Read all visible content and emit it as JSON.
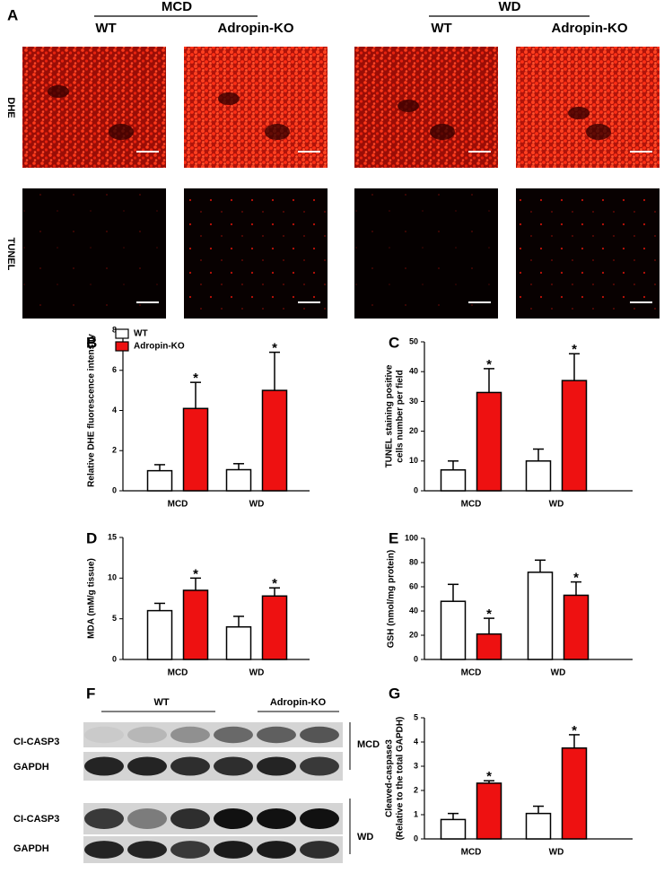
{
  "panel_a": {
    "label": "A",
    "groups": [
      {
        "name": "MCD",
        "columns": [
          "WT",
          "Adropin-KO"
        ]
      },
      {
        "name": "WD",
        "columns": [
          "WT",
          "Adropin-KO"
        ]
      }
    ],
    "rows": [
      "DHE",
      "TUNEL"
    ]
  },
  "panel_f": {
    "label": "F",
    "groups": [
      "WT",
      "Adropin-KO"
    ],
    "rows": [
      "CI-CASP3",
      "GAPDH",
      "CI-CASP3",
      "GAPDH"
    ],
    "conditions": [
      "MCD",
      "WD"
    ]
  },
  "chart_data": [
    {
      "type": "bar",
      "panel": "B",
      "ylabel": [
        "Relative DHE fluorescence intensity"
      ],
      "categories": [
        "MCD",
        "WD"
      ],
      "legend": "top-left",
      "series": [
        {
          "name": "WT",
          "color": "#ffffff",
          "values": [
            1.0,
            1.05
          ],
          "errors": [
            0.3,
            0.3
          ]
        },
        {
          "name": "Adropin-KO",
          "color": "#ee1111",
          "values": [
            4.1,
            5.0
          ],
          "errors": [
            1.3,
            1.9
          ],
          "significance": [
            "*",
            "*"
          ]
        }
      ],
      "ylim": [
        0,
        8
      ],
      "yticks": [
        0,
        2,
        4,
        6,
        8
      ]
    },
    {
      "type": "bar",
      "panel": "C",
      "ylabel": [
        "TUNEL staining positive",
        "cells number per field"
      ],
      "categories": [
        "MCD",
        "WD"
      ],
      "series": [
        {
          "color": "#ffffff",
          "values": [
            7,
            10
          ],
          "errors": [
            3,
            4
          ]
        },
        {
          "color": "#ee1111",
          "values": [
            33,
            37
          ],
          "errors": [
            8,
            9
          ],
          "significance": [
            "*",
            "*"
          ]
        }
      ],
      "ylim": [
        0,
        50
      ],
      "yticks": [
        0,
        10,
        20,
        30,
        40,
        50
      ]
    },
    {
      "type": "bar",
      "panel": "D",
      "ylabel": [
        "MDA (mM/g tissue)"
      ],
      "categories": [
        "MCD",
        "WD"
      ],
      "series": [
        {
          "color": "#ffffff",
          "values": [
            6.0,
            4.0
          ],
          "errors": [
            0.9,
            1.3
          ]
        },
        {
          "color": "#ee1111",
          "values": [
            8.5,
            7.8
          ],
          "errors": [
            1.5,
            1.0
          ],
          "significance": [
            "*",
            "*"
          ]
        }
      ],
      "ylim": [
        0,
        15
      ],
      "yticks": [
        0,
        5,
        10,
        15
      ]
    },
    {
      "type": "bar",
      "panel": "E",
      "ylabel": [
        "GSH (nmol/mg protein)"
      ],
      "categories": [
        "MCD",
        "WD"
      ],
      "series": [
        {
          "color": "#ffffff",
          "values": [
            48,
            72
          ],
          "errors": [
            14,
            10
          ]
        },
        {
          "color": "#ee1111",
          "values": [
            21,
            53
          ],
          "errors": [
            13,
            11
          ],
          "significance": [
            "*",
            "*"
          ]
        }
      ],
      "ylim": [
        0,
        100
      ],
      "yticks": [
        0,
        20,
        40,
        60,
        80,
        100
      ]
    },
    {
      "type": "bar",
      "panel": "G",
      "ylabel": [
        "Cleaved-caspase3",
        "(Relative to the total GAPDH)"
      ],
      "categories": [
        "MCD",
        "WD"
      ],
      "series": [
        {
          "color": "#ffffff",
          "values": [
            0.8,
            1.05
          ],
          "errors": [
            0.25,
            0.3
          ]
        },
        {
          "color": "#ee1111",
          "values": [
            2.3,
            3.75
          ],
          "errors": [
            0.1,
            0.55
          ],
          "significance": [
            "*",
            "*"
          ]
        }
      ],
      "ylim": [
        0,
        5
      ],
      "yticks": [
        0,
        1,
        2,
        3,
        4,
        5
      ]
    }
  ]
}
